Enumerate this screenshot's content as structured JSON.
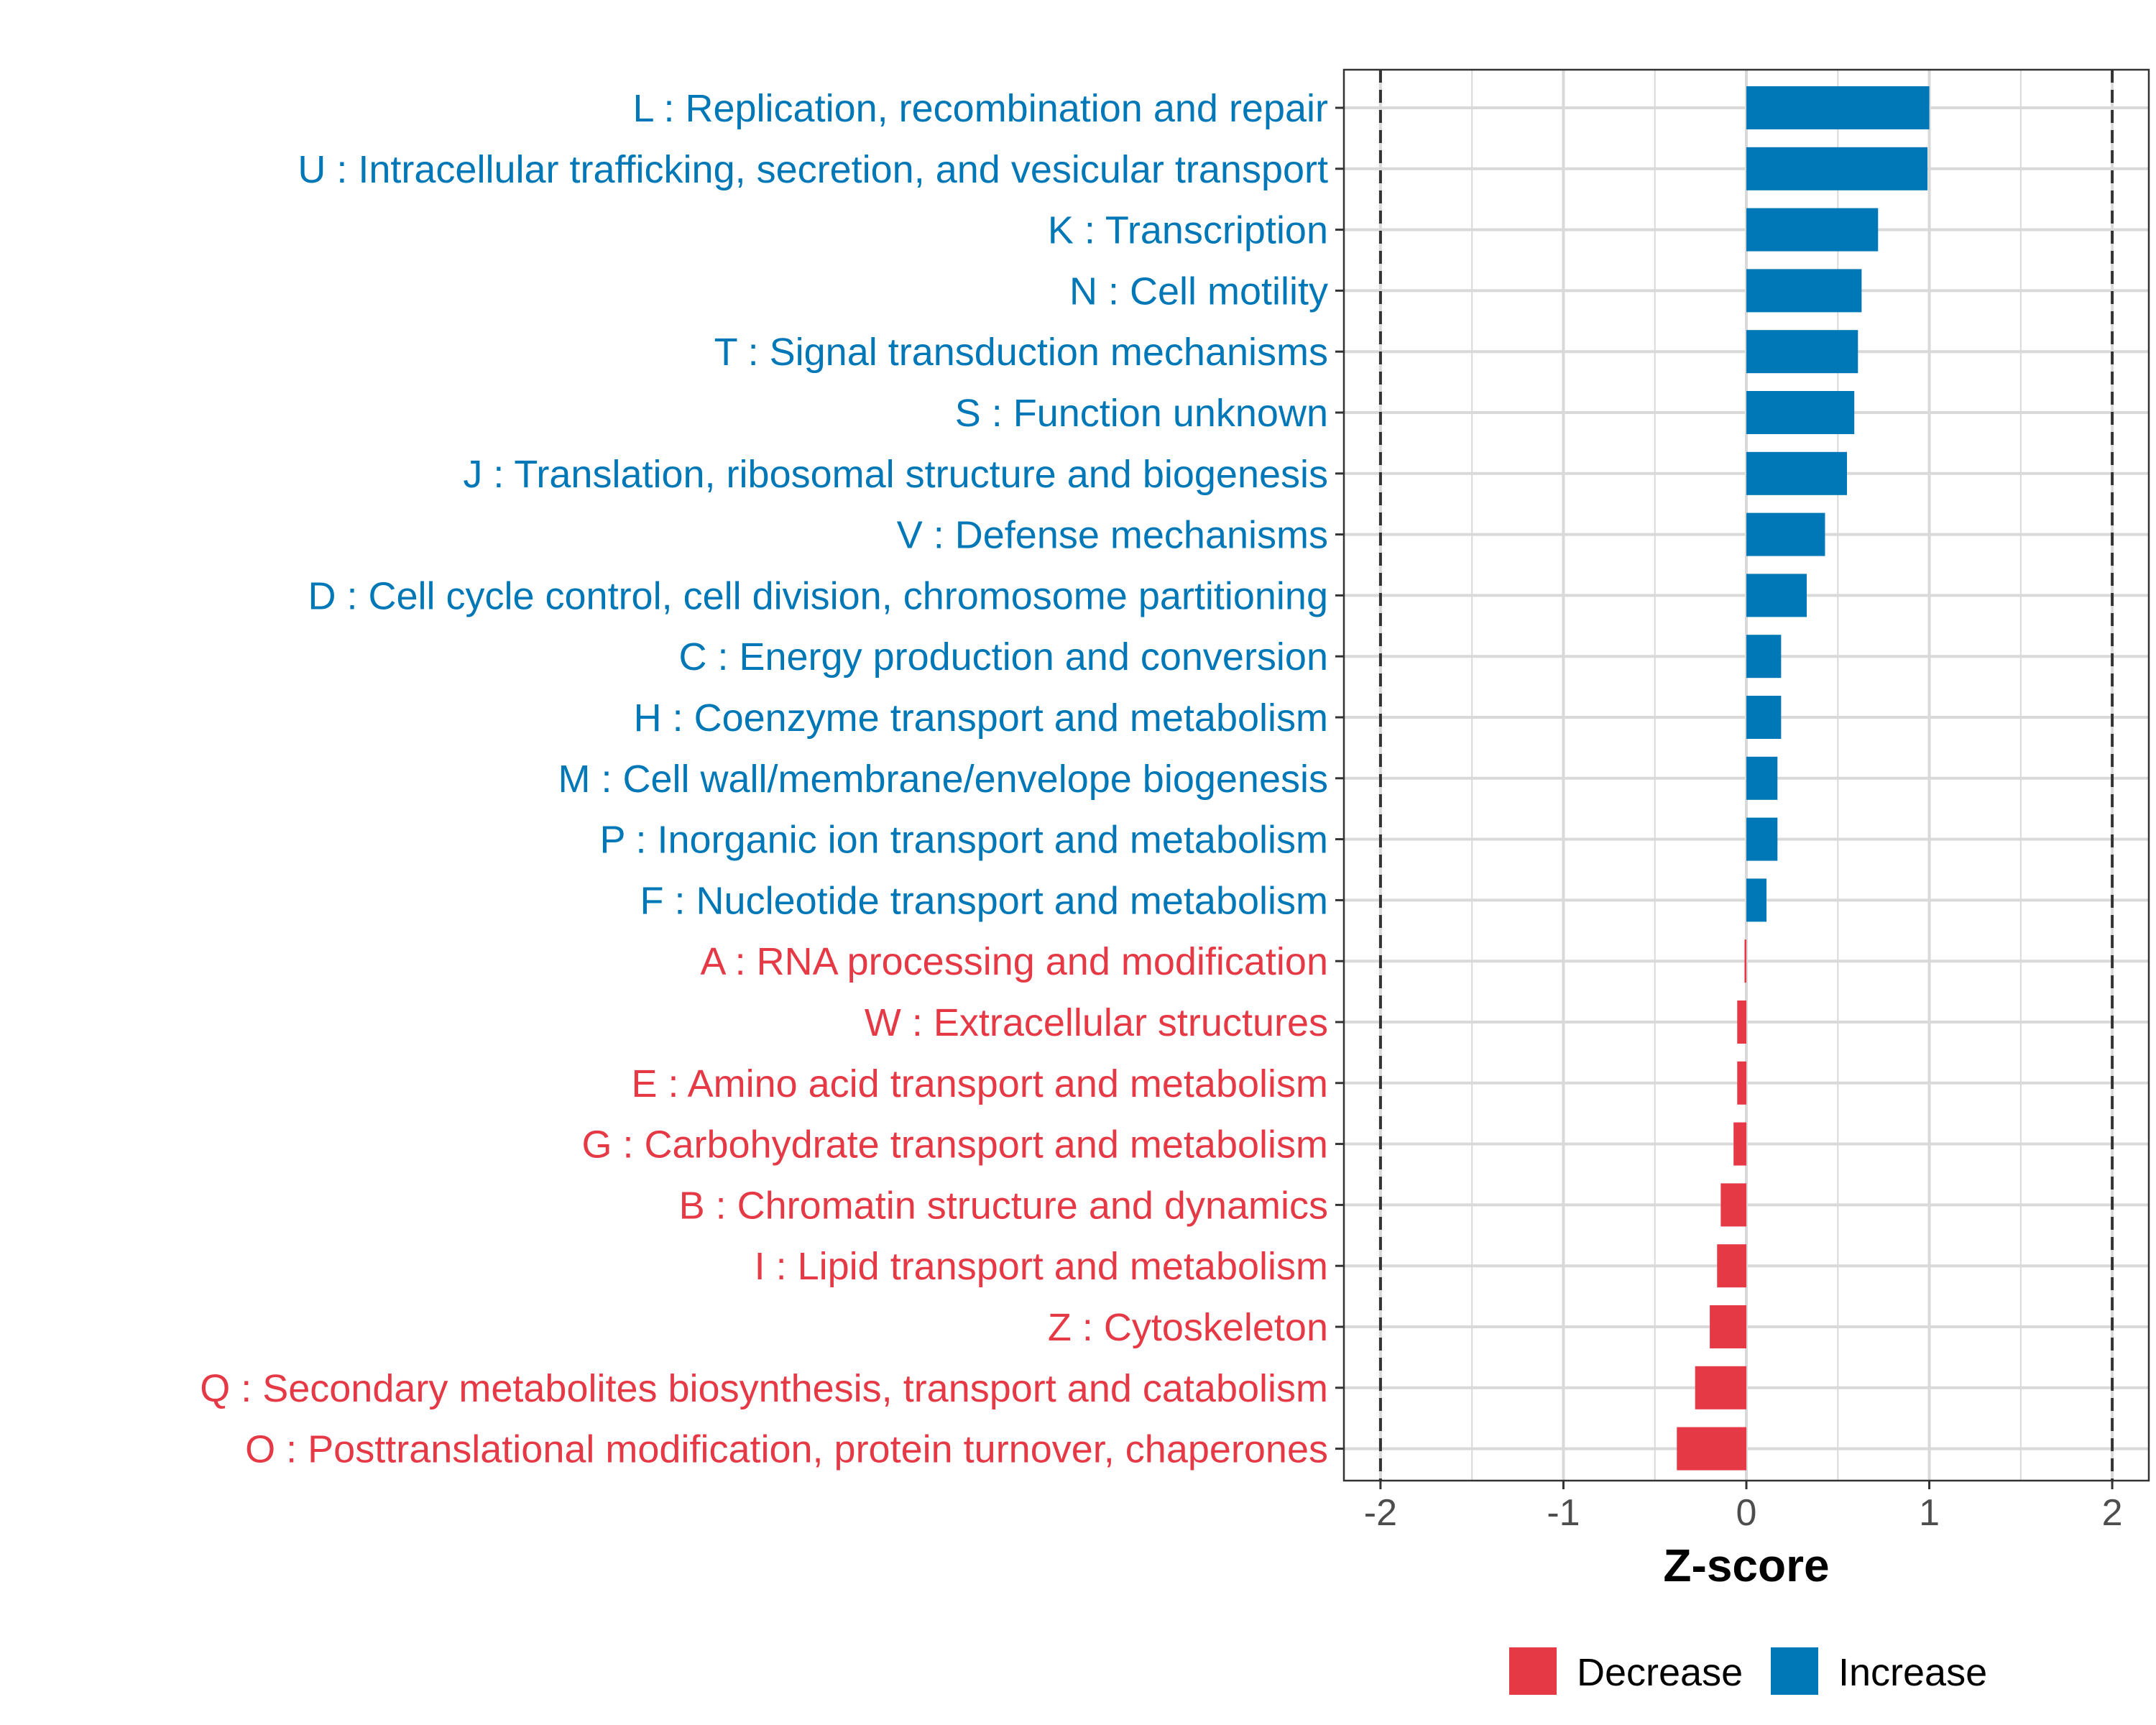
{
  "chart_data": {
    "type": "bar",
    "orientation": "horizontal",
    "title": "",
    "xlabel": "Z-score",
    "ylabel": "",
    "xlim": [
      -2.2,
      2.2
    ],
    "xticks": [
      "-2",
      "-1",
      "0",
      "1",
      "2"
    ],
    "xtick_values": [
      -2,
      -1,
      0,
      1,
      2
    ],
    "reference_lines": [
      -2,
      2
    ],
    "grid": true,
    "categories": [
      "L : Replication, recombination and repair",
      "U : Intracellular trafficking, secretion, and vesicular transport",
      "K : Transcription",
      "N : Cell motility",
      "T : Signal transduction mechanisms",
      "S : Function unknown",
      "J : Translation, ribosomal structure and biogenesis",
      "V : Defense mechanisms",
      "D : Cell cycle control, cell division, chromosome partitioning",
      "C : Energy production and conversion",
      "H : Coenzyme transport and metabolism",
      "M : Cell wall/membrane/envelope biogenesis",
      "P : Inorganic ion transport and metabolism",
      "F : Nucleotide transport and metabolism",
      "A : RNA processing and modification",
      "W : Extracellular structures",
      "E : Amino acid transport and metabolism",
      "G : Carbohydrate transport and metabolism",
      "B : Chromatin structure and dynamics",
      "I : Lipid transport and metabolism",
      "Z : Cytoskeleton",
      "Q : Secondary metabolites biosynthesis, transport and catabolism",
      "O : Posttranslational modification, protein turnover, chaperones"
    ],
    "values": [
      1.0,
      0.99,
      0.72,
      0.63,
      0.61,
      0.59,
      0.55,
      0.43,
      0.33,
      0.19,
      0.19,
      0.17,
      0.17,
      0.11,
      -0.01,
      -0.05,
      -0.05,
      -0.07,
      -0.14,
      -0.16,
      -0.2,
      -0.28,
      -0.38
    ],
    "groups": [
      "Increase",
      "Increase",
      "Increase",
      "Increase",
      "Increase",
      "Increase",
      "Increase",
      "Increase",
      "Increase",
      "Increase",
      "Increase",
      "Increase",
      "Increase",
      "Increase",
      "Decrease",
      "Decrease",
      "Decrease",
      "Decrease",
      "Decrease",
      "Decrease",
      "Decrease",
      "Decrease",
      "Decrease"
    ],
    "legend": {
      "position": "bottom",
      "items": [
        {
          "label": "Decrease",
          "color": "#E63946"
        },
        {
          "label": "Increase",
          "color": "#0077B6"
        }
      ]
    },
    "colors": {
      "Increase": "#0077B6",
      "Decrease": "#E63946"
    }
  }
}
